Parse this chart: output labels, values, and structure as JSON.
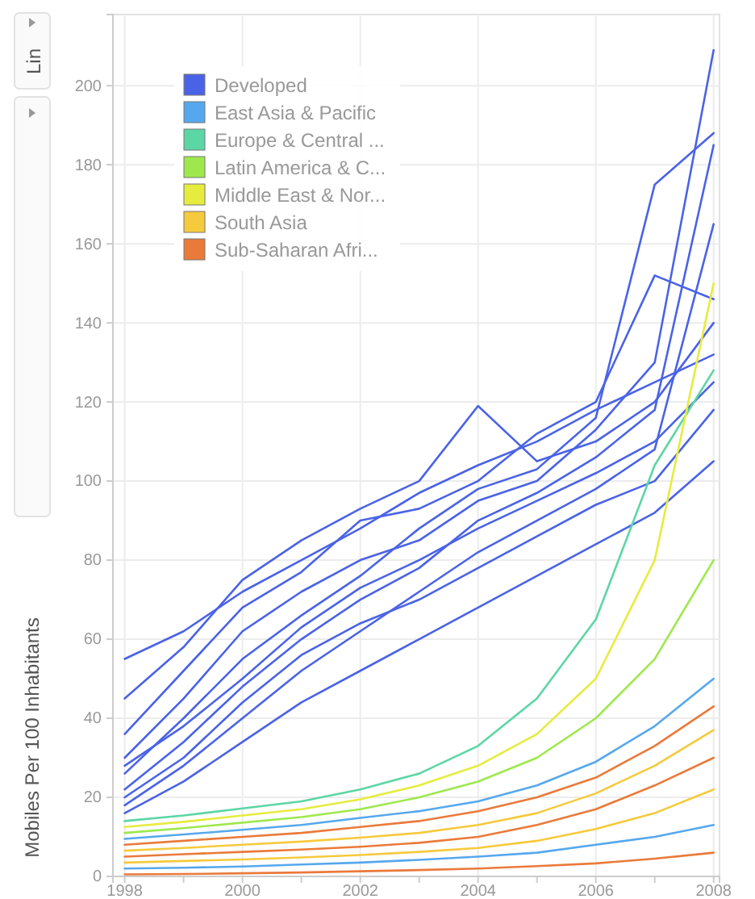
{
  "chart_data": {
    "type": "line",
    "ylabel": "Mobiles Per 100 Inhabitants",
    "annotations": [
      "Lin"
    ],
    "x": [
      1998,
      1999,
      2000,
      2001,
      2002,
      2003,
      2004,
      2005,
      2006,
      2007,
      2008
    ],
    "xlim": [
      1997.8,
      2008.1
    ],
    "ylim": [
      0,
      218
    ],
    "xticks": [
      1998,
      {
        "value": 1999,
        "label": null
      },
      2000,
      {
        "value": 2001,
        "label": null
      },
      2002,
      {
        "value": 2003,
        "label": null
      },
      2004,
      {
        "value": 2005,
        "label": null
      },
      2006,
      {
        "value": 2007,
        "label": null
      },
      2008
    ],
    "yticks": [
      0,
      20,
      40,
      60,
      80,
      100,
      120,
      140,
      160,
      180,
      200
    ],
    "grid": true,
    "legend": "top left",
    "marker": "none",
    "line_style": "solid",
    "series": [
      {
        "name": "Developed",
        "color": "#4a63e6",
        "values": [
          55,
          62,
          72,
          80,
          88,
          97,
          104,
          110,
          118,
          125,
          132
        ]
      },
      {
        "color": "#4a63e6",
        "values": [
          45,
          58,
          75,
          85,
          93,
          100,
          119,
          105,
          110,
          120,
          140
        ]
      },
      {
        "color": "#4a63e6",
        "values": [
          36,
          52,
          68,
          77,
          90,
          93,
          100,
          112,
          120,
          152,
          146
        ]
      },
      {
        "color": "#4a63e6",
        "values": [
          30,
          45,
          62,
          72,
          80,
          85,
          95,
          100,
          113,
          130,
          209
        ]
      },
      {
        "color": "#4a63e6",
        "values": [
          26,
          40,
          55,
          66,
          76,
          88,
          98,
          103,
          116,
          175,
          188
        ]
      },
      {
        "color": "#4a63e6",
        "values": [
          22,
          34,
          48,
          60,
          70,
          78,
          90,
          97,
          106,
          118,
          185
        ]
      },
      {
        "color": "#4a63e6",
        "values": [
          18,
          28,
          40,
          52,
          62,
          72,
          82,
          90,
          98,
          108,
          165
        ]
      },
      {
        "color": "#4a63e6",
        "values": [
          20,
          30,
          44,
          56,
          64,
          70,
          78,
          86,
          94,
          100,
          118
        ]
      },
      {
        "color": "#4a63e6",
        "values": [
          16,
          24,
          34,
          44,
          52,
          60,
          68,
          76,
          84,
          92,
          105
        ]
      },
      {
        "color": "#4a63e6",
        "values": [
          28,
          38,
          50,
          63,
          73,
          80,
          88,
          95,
          102,
          110,
          125
        ]
      },
      {
        "name": "East Asia & Pacific",
        "color": "#56a8ee",
        "values": [
          2,
          2.2,
          2.5,
          3,
          3.5,
          4.2,
          5,
          6,
          8,
          10,
          13
        ]
      },
      {
        "color": "#56a8ee",
        "values": [
          9.5,
          10.6,
          11.8,
          13,
          14.8,
          16.5,
          19,
          23,
          29,
          38,
          50
        ]
      },
      {
        "name": "Europe & Central ...",
        "color": "#5cd6a5",
        "values": [
          14,
          15.4,
          17.2,
          19,
          22,
          26,
          33,
          45,
          65,
          104,
          128
        ]
      },
      {
        "name": "Latin America & C...",
        "color": "#9ee84d",
        "values": [
          11,
          12.2,
          13.6,
          15,
          17,
          20,
          24,
          30,
          40,
          55,
          80
        ]
      },
      {
        "name": "Middle East & Nor...",
        "color": "#e6ec3e",
        "values": [
          12.5,
          13.8,
          15.4,
          17,
          19.5,
          23,
          28,
          36,
          50,
          80,
          150
        ]
      },
      {
        "name": "South Asia",
        "color": "#f5ca3c",
        "values": [
          3.5,
          3.9,
          4.3,
          4.8,
          5.4,
          6.2,
          7.2,
          9,
          12,
          16,
          22
        ]
      },
      {
        "color": "#f5ca3c",
        "values": [
          6.5,
          7.2,
          8,
          8.8,
          9.8,
          11,
          13,
          16,
          21,
          28,
          37
        ]
      },
      {
        "name": "Sub-Saharan Afri...",
        "color": "#ea7a3a",
        "values": [
          0.5,
          0.6,
          0.8,
          1,
          1.3,
          1.6,
          2,
          2.6,
          3.3,
          4.5,
          6
        ]
      },
      {
        "color": "#ea7a3a",
        "values": [
          5,
          5.6,
          6.2,
          6.8,
          7.5,
          8.5,
          10,
          13,
          17,
          23,
          30
        ]
      },
      {
        "color": "#ea7a3a",
        "values": [
          8,
          9,
          10,
          11,
          12.5,
          14,
          16.5,
          20,
          25,
          33,
          43
        ]
      }
    ]
  }
}
